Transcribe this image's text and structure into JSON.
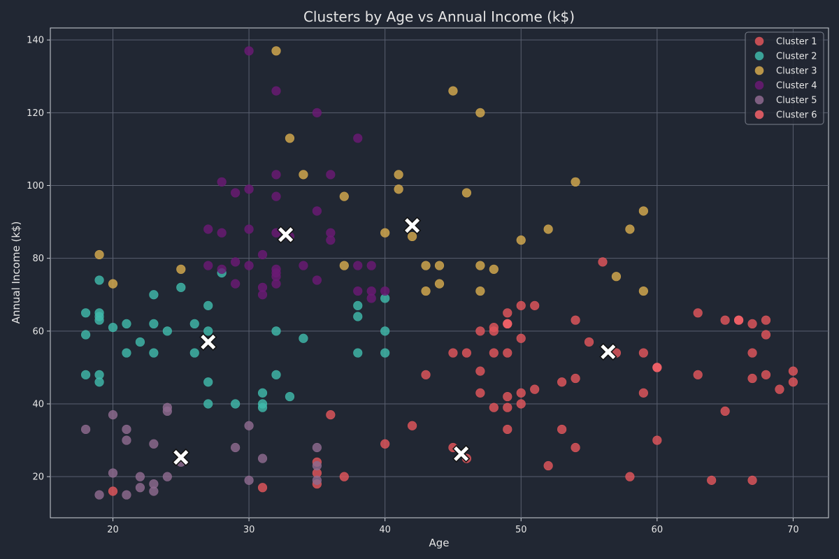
{
  "chart_data": {
    "type": "scatter",
    "title": "Clusters by Age vs Annual Income (k$)",
    "xlabel": "Age",
    "ylabel": "Annual Income (k$)",
    "xlim": [
      15.4,
      72.6
    ],
    "ylim": [
      8.7,
      143.3
    ],
    "xticks": [
      20,
      30,
      40,
      50,
      60,
      70
    ],
    "yticks": [
      20,
      40,
      60,
      80,
      100,
      120,
      140
    ],
    "grid": true,
    "legend_position": "top-right",
    "centroid_marker": "white X",
    "colors": {
      "background": "#212733",
      "axes_face": "#212733",
      "text": "#e6e6e6",
      "grid": "#5a6070"
    },
    "series": [
      {
        "name": "Cluster 1",
        "color": "#e0565b",
        "points": [
          [
            56,
            79
          ],
          [
            63,
            65
          ],
          [
            65,
            63
          ],
          [
            66,
            63
          ],
          [
            67,
            62
          ],
          [
            68,
            63
          ],
          [
            68,
            59
          ],
          [
            67,
            54
          ],
          [
            63,
            48
          ],
          [
            67,
            47
          ],
          [
            68,
            48
          ],
          [
            69,
            44
          ],
          [
            70,
            49
          ],
          [
            70,
            46
          ],
          [
            65,
            38
          ],
          [
            64,
            19
          ],
          [
            67,
            19
          ],
          [
            60,
            50
          ],
          [
            60,
            30
          ],
          [
            58,
            20
          ],
          [
            59,
            54
          ],
          [
            57,
            54
          ],
          [
            55,
            57
          ],
          [
            54,
            63
          ],
          [
            54,
            47
          ],
          [
            53,
            46
          ],
          [
            59,
            43
          ],
          [
            51,
            67
          ],
          [
            50,
            67
          ],
          [
            49,
            65
          ],
          [
            49,
            62
          ],
          [
            48,
            61
          ],
          [
            48,
            60
          ],
          [
            47,
            60
          ],
          [
            50,
            58
          ],
          [
            45,
            54
          ],
          [
            46,
            54
          ],
          [
            48,
            54
          ],
          [
            49,
            54
          ],
          [
            47,
            49
          ],
          [
            43,
            48
          ],
          [
            47,
            43
          ],
          [
            49,
            42
          ],
          [
            50,
            43
          ],
          [
            51,
            44
          ],
          [
            48,
            39
          ],
          [
            49,
            39
          ],
          [
            50,
            40
          ],
          [
            49,
            33
          ],
          [
            53,
            33
          ],
          [
            54,
            28
          ],
          [
            52,
            23
          ],
          [
            45,
            28
          ],
          [
            46,
            25
          ],
          [
            42,
            34
          ],
          [
            40,
            29
          ],
          [
            36,
            37
          ],
          [
            37,
            20
          ],
          [
            35,
            24
          ],
          [
            35,
            21
          ],
          [
            35,
            18
          ],
          [
            31,
            17
          ],
          [
            20,
            16
          ]
        ]
      },
      {
        "name": "Cluster 2",
        "color": "#3fb8aa",
        "points": [
          [
            19,
            74
          ],
          [
            18,
            65
          ],
          [
            19,
            65
          ],
          [
            19,
            64
          ],
          [
            19,
            63
          ],
          [
            20,
            61
          ],
          [
            21,
            62
          ],
          [
            23,
            62
          ],
          [
            18,
            59
          ],
          [
            23,
            70
          ],
          [
            25,
            72
          ],
          [
            24,
            60
          ],
          [
            26,
            62
          ],
          [
            27,
            67
          ],
          [
            27,
            60
          ],
          [
            22,
            57
          ],
          [
            21,
            54
          ],
          [
            23,
            54
          ],
          [
            26,
            54
          ],
          [
            18,
            48
          ],
          [
            19,
            48
          ],
          [
            19,
            46
          ],
          [
            27,
            46
          ],
          [
            27,
            40
          ],
          [
            29,
            40
          ],
          [
            31,
            43
          ],
          [
            31,
            40
          ],
          [
            31,
            39
          ],
          [
            33,
            42
          ],
          [
            32,
            60
          ],
          [
            32,
            48
          ],
          [
            34,
            58
          ],
          [
            28,
            76
          ],
          [
            38,
            67
          ],
          [
            38,
            64
          ],
          [
            40,
            69
          ],
          [
            40,
            60
          ],
          [
            38,
            54
          ],
          [
            40,
            54
          ]
        ]
      },
      {
        "name": "Cluster 3",
        "color": "#d4a94e",
        "points": [
          [
            32,
            137
          ],
          [
            45,
            126
          ],
          [
            47,
            120
          ],
          [
            33,
            113
          ],
          [
            34,
            103
          ],
          [
            41,
            103
          ],
          [
            41,
            99
          ],
          [
            37,
            97
          ],
          [
            46,
            98
          ],
          [
            54,
            101
          ],
          [
            59,
            93
          ],
          [
            52,
            88
          ],
          [
            58,
            88
          ],
          [
            40,
            87
          ],
          [
            42,
            86
          ],
          [
            50,
            85
          ],
          [
            19,
            81
          ],
          [
            25,
            77
          ],
          [
            20,
            73
          ],
          [
            37,
            78
          ],
          [
            43,
            78
          ],
          [
            44,
            78
          ],
          [
            47,
            78
          ],
          [
            48,
            77
          ],
          [
            43,
            71
          ],
          [
            44,
            73
          ],
          [
            47,
            71
          ],
          [
            57,
            75
          ],
          [
            59,
            71
          ]
        ]
      },
      {
        "name": "Cluster 4",
        "color": "#6a1a74",
        "points": [
          [
            30,
            137
          ],
          [
            32,
            126
          ],
          [
            35,
            120
          ],
          [
            38,
            113
          ],
          [
            32,
            103
          ],
          [
            36,
            103
          ],
          [
            28,
            101
          ],
          [
            29,
            98
          ],
          [
            30,
            99
          ],
          [
            32,
            97
          ],
          [
            35,
            93
          ],
          [
            27,
            88
          ],
          [
            30,
            88
          ],
          [
            28,
            87
          ],
          [
            32,
            87
          ],
          [
            33,
            86
          ],
          [
            36,
            87
          ],
          [
            36,
            85
          ],
          [
            31,
            81
          ],
          [
            27,
            78
          ],
          [
            29,
            79
          ],
          [
            30,
            78
          ],
          [
            28,
            77
          ],
          [
            32,
            77
          ],
          [
            32,
            76
          ],
          [
            32,
            75
          ],
          [
            34,
            78
          ],
          [
            38,
            78
          ],
          [
            39,
            78
          ],
          [
            29,
            73
          ],
          [
            31,
            72
          ],
          [
            31,
            70
          ],
          [
            32,
            73
          ],
          [
            35,
            74
          ],
          [
            38,
            71
          ],
          [
            39,
            71
          ],
          [
            39,
            69
          ],
          [
            40,
            71
          ]
        ]
      },
      {
        "name": "Cluster 5",
        "color": "#8e6a8f",
        "points": [
          [
            18,
            33
          ],
          [
            20,
            37
          ],
          [
            21,
            33
          ],
          [
            21,
            30
          ],
          [
            23,
            29
          ],
          [
            24,
            39
          ],
          [
            24,
            38
          ],
          [
            20,
            21
          ],
          [
            22,
            20
          ],
          [
            24,
            20
          ],
          [
            19,
            15
          ],
          [
            21,
            15
          ],
          [
            22,
            17
          ],
          [
            23,
            18
          ],
          [
            23,
            16
          ],
          [
            25,
            24
          ],
          [
            29,
            28
          ],
          [
            30,
            34
          ],
          [
            30,
            19
          ],
          [
            31,
            25
          ],
          [
            35,
            28
          ],
          [
            35,
            23
          ],
          [
            35,
            19
          ]
        ]
      },
      {
        "name": "Cluster 6",
        "color": "#f5636a",
        "points": [
          [
            66,
            63
          ],
          [
            60,
            50
          ],
          [
            49,
            62
          ]
        ]
      }
    ],
    "centroids": [
      [
        56.4,
        54.3
      ],
      [
        27.0,
        57.0
      ],
      [
        42.0,
        89.0
      ],
      [
        32.7,
        86.5
      ],
      [
        25.0,
        25.3
      ],
      [
        45.6,
        26.3
      ]
    ]
  }
}
